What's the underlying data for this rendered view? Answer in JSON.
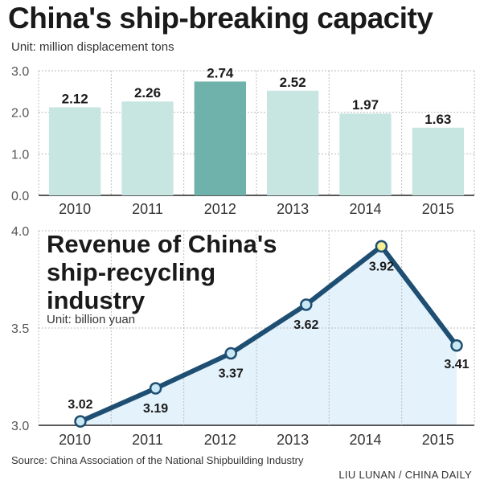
{
  "chart_data": [
    {
      "type": "bar",
      "title": "China's ship-breaking capacity",
      "unit_label": "Unit: million displacement tons",
      "categories": [
        "2010",
        "2011",
        "2012",
        "2013",
        "2014",
        "2015"
      ],
      "values": [
        2.12,
        2.26,
        2.74,
        2.52,
        1.97,
        1.63
      ],
      "value_labels": [
        "2.12",
        "2.26",
        "2.74",
        "2.52",
        "1.97",
        "1.63"
      ],
      "y_ticks": [
        "0.0",
        "1.0",
        "2.0",
        "3.0"
      ],
      "ylim": [
        0,
        3
      ],
      "highlight_index": 2,
      "colors": {
        "bar": "#c7e6e2",
        "highlight": "#6fb1ab"
      },
      "grid": true
    },
    {
      "type": "line",
      "title": "Revenue of China's ship-recycling industry",
      "unit_label": "Unit: billion yuan",
      "categories": [
        "2010",
        "2011",
        "2012",
        "2013",
        "2014",
        "2015"
      ],
      "values": [
        3.02,
        3.19,
        3.37,
        3.62,
        3.92,
        3.41
      ],
      "value_labels": [
        "3.02",
        "3.19",
        "3.37",
        "3.62",
        "3.92",
        "3.41"
      ],
      "y_ticks": [
        "3.0",
        "3.5",
        "4.0"
      ],
      "ylim": [
        3,
        4
      ],
      "highlight_index": 4,
      "colors": {
        "line": "#1e4f73",
        "area": "#e3f2fb",
        "marker": "#c9e8f3",
        "highlight_marker": "#f6f092"
      },
      "grid": true
    }
  ],
  "source": "Source: China Association of the National Shipbuilding Industry",
  "credit": "LIU LUNAN / CHINA DAILY"
}
